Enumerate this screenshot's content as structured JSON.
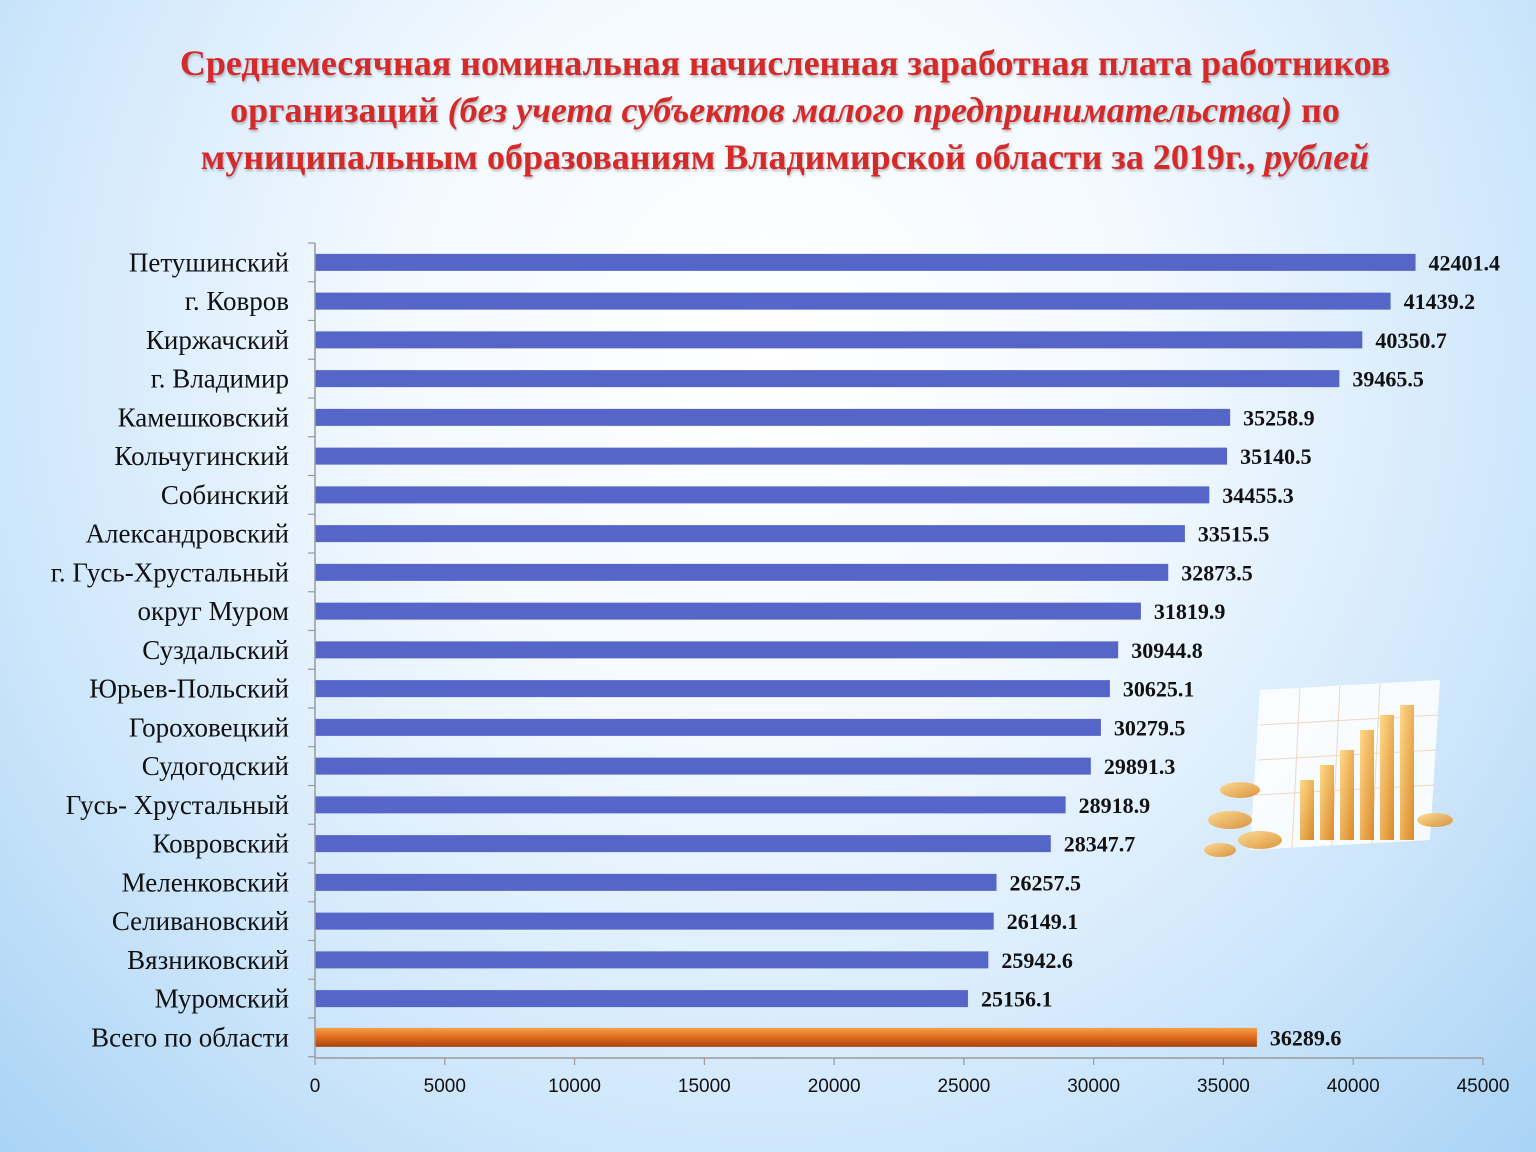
{
  "title": {
    "line1": "Среднемесячная номинальная начисленная  заработная плата работников",
    "line2_a": "организаций ",
    "line2_b": "(без учета субъектов малого предпринимательства)",
    "line2_c": " по",
    "line3_a": "муниципальным образованиям Владимирской области за 2019г., ",
    "line3_b": "рублей"
  },
  "colors": {
    "bar": "#5566c8",
    "total_bar": "#e06a1c",
    "title": "#d42a2a"
  },
  "chart_data": {
    "type": "bar",
    "orientation": "horizontal",
    "categories": [
      "Петушинский",
      "г. Ковров",
      "Киржачский",
      "г. Владимир",
      "Камешковский",
      "Кольчугинский",
      "Собинский",
      "Александровский",
      "г. Гусь-Хрустальный",
      "округ Муром",
      "Суздальский",
      "Юрьев-Польский",
      "Гороховецкий",
      "Судогодский",
      "Гусь- Хрустальный",
      "Ковровский",
      "Меленковский",
      "Селивановский",
      "Вязниковский",
      "Муромский",
      "Всего по области"
    ],
    "values": [
      42401.4,
      41439.2,
      40350.7,
      39465.5,
      35258.9,
      35140.5,
      34455.3,
      33515.5,
      32873.5,
      31819.9,
      30944.8,
      30625.1,
      30279.5,
      29891.3,
      28918.9,
      28347.7,
      26257.5,
      26149.1,
      25942.6,
      25156.1,
      36289.6
    ],
    "value_labels": [
      "42401.4",
      "41439.2",
      "40350.7",
      "39465.5",
      "35258.9",
      "35140.5",
      "34455.3",
      "33515.5",
      "32873.5",
      "31819.9",
      "30944.8",
      "30625.1",
      "30279.5",
      "29891.3",
      "28918.9",
      "28347.7",
      "26257.5",
      "26149.1",
      "25942.6",
      "25156.1",
      "36289.6"
    ],
    "highlight_index": 20,
    "xlim": [
      0,
      45000
    ],
    "xticks": [
      0,
      5000,
      10000,
      15000,
      20000,
      25000,
      30000,
      35000,
      40000,
      45000
    ],
    "xtick_labels": [
      "0",
      "5000",
      "10000",
      "15000",
      "20000",
      "25000",
      "30000",
      "35000",
      "40000",
      "45000"
    ],
    "grid": false,
    "legend": "none"
  }
}
